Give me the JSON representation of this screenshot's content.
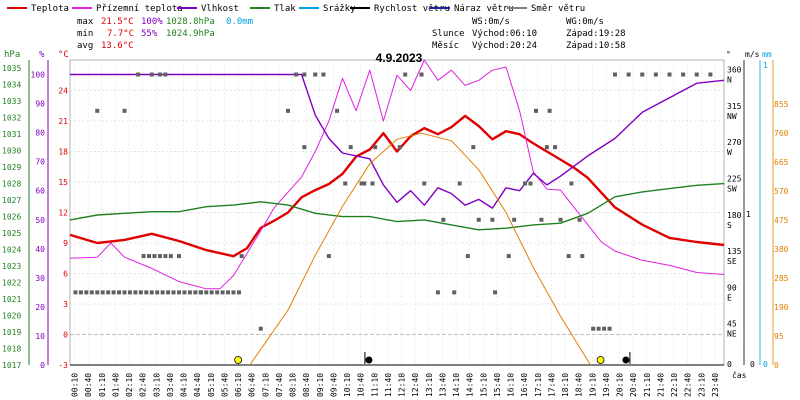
{
  "legend": [
    {
      "label": "Teplota",
      "color": "#e00000"
    },
    {
      "label": "Přízemní teplota",
      "color": "#e020e0"
    },
    {
      "label": "Vlhkost",
      "color": "#8000c0"
    },
    {
      "label": "Tlak",
      "color": "#208020"
    },
    {
      "label": "Srážky",
      "color": "#00a0e0"
    },
    {
      "label": "Rychlost větru",
      "color": "#000000"
    },
    {
      "label": "Náraz větru",
      "color": "#2020a0"
    },
    {
      "label": "Směr větru",
      "color": "#808080"
    }
  ],
  "stats": {
    "max_label": "max",
    "max_temp": "21.5°C",
    "max_hum": "100%",
    "max_press": "1028.8hPa",
    "max_rain": "0.0mm",
    "min_label": "min",
    "min_temp": "7.7°C",
    "min_hum": "55%",
    "min_press": "1024.9hPa",
    "avg_label": "avg",
    "avg_temp": "13.6°C"
  },
  "wind_info": {
    "ws": "WS:0m/s",
    "wg": "WG:0m/s"
  },
  "sun": {
    "label": "Slunce",
    "rise": "Východ:06:10",
    "set": "Západ:19:28"
  },
  "moon": {
    "label": "Měsíc",
    "rise": "Východ:20:24",
    "set": "Západ:10:58"
  },
  "colors": {
    "temp": "#e00000",
    "ground": "#e020e0",
    "hum": "#8000c0",
    "press": "#208020",
    "rain": "#00a0e0",
    "wind": "#000000",
    "gust": "#2020a0",
    "dir": "#606060",
    "sun": "#e08000",
    "grid": "#c0c0c0"
  },
  "chart_data": {
    "type": "line",
    "title": "4.9.2023",
    "x_label": "čas",
    "x_ticks": [
      "00:10",
      "00:40",
      "01:10",
      "01:40",
      "02:10",
      "02:40",
      "03:10",
      "03:40",
      "04:10",
      "04:40",
      "05:10",
      "05:40",
      "06:10",
      "06:40",
      "07:10",
      "07:40",
      "08:10",
      "08:40",
      "09:10",
      "09:40",
      "10:10",
      "10:40",
      "11:10",
      "11:40",
      "12:10",
      "12:40",
      "13:10",
      "13:40",
      "14:10",
      "14:40",
      "15:10",
      "15:40",
      "16:10",
      "16:40",
      "17:10",
      "17:40",
      "18:10",
      "18:40",
      "19:10",
      "19:40",
      "20:10",
      "20:40",
      "21:10",
      "21:40",
      "22:10",
      "22:40",
      "23:10",
      "23:40"
    ],
    "axes": {
      "hpa": {
        "unit": "hPa",
        "ticks": [
          1017,
          1018,
          1019,
          1020,
          1021,
          1022,
          1023,
          1024,
          1025,
          1026,
          1027,
          1028,
          1029,
          1030,
          1031,
          1032,
          1033,
          1034,
          1035
        ],
        "range": [
          1017,
          1035.5
        ]
      },
      "percent": {
        "unit": "%",
        "ticks": [
          0,
          10,
          20,
          30,
          40,
          50,
          60,
          70,
          80,
          90,
          100
        ],
        "range": [
          0,
          105
        ]
      },
      "temp": {
        "unit": "°C",
        "ticks": [
          -3,
          0,
          3,
          6,
          9,
          12,
          15,
          18,
          21,
          24
        ],
        "range": [
          -3,
          27
        ]
      },
      "dir": {
        "unit": "°",
        "ticks": [
          "0",
          "45",
          "90",
          "135",
          "180",
          "225",
          "270",
          "315",
          "360"
        ],
        "range": [
          0,
          378
        ]
      },
      "dir_names": [
        "",
        "NE",
        "E",
        "SE",
        "S",
        "SW",
        "W",
        "NW",
        "N"
      ],
      "wind": {
        "unit": "m/s",
        "ticks": [
          "0",
          "1"
        ],
        "range": [
          0,
          1
        ]
      },
      "rain": {
        "unit": "mm",
        "ticks": [
          "0",
          "1"
        ],
        "range": [
          0,
          1
        ]
      },
      "sun_scale": {
        "ticks": [
          0,
          95,
          190,
          285,
          380,
          475,
          570,
          665,
          760,
          855
        ],
        "range": [
          0,
          1000
        ]
      }
    },
    "series": [
      {
        "name": "Teplota",
        "color": "#e00000",
        "axis": "temp",
        "x": [
          0,
          1,
          2,
          3,
          4,
          5,
          6,
          6.5,
          7,
          7.5,
          8,
          8.5,
          9,
          9.5,
          10,
          10.5,
          11,
          11.5,
          12,
          12.5,
          13,
          13.5,
          14,
          14.5,
          15,
          15.5,
          16,
          16.5,
          17,
          17.5,
          18,
          18.5,
          19,
          20,
          21,
          22,
          23,
          24
        ],
        "y": [
          9.8,
          9.0,
          9.3,
          9.9,
          9.2,
          8.3,
          7.7,
          8.5,
          10.5,
          11.2,
          12,
          13.5,
          14.2,
          14.8,
          15.8,
          17.5,
          18.2,
          19.8,
          18,
          19.5,
          20.3,
          19.7,
          20.4,
          21.5,
          20.5,
          19.2,
          20.0,
          19.7,
          18.8,
          18.0,
          17.2,
          16.4,
          15.4,
          12.5,
          10.8,
          9.5,
          9.1,
          8.8
        ]
      },
      {
        "name": "Přízemní teplota",
        "color": "#e020e0",
        "axis": "temp",
        "x": [
          0,
          1,
          1.5,
          2,
          3,
          4,
          5,
          5.5,
          6,
          6.5,
          7,
          7.5,
          8,
          8.5,
          9,
          9.5,
          10,
          10.5,
          11,
          11.5,
          12,
          12.5,
          13,
          13.5,
          14,
          14.5,
          15,
          15.5,
          16,
          16.5,
          17,
          17.5,
          18,
          18.5,
          19,
          19.5,
          20,
          21,
          22,
          23,
          24
        ],
        "y": [
          7.5,
          7.6,
          9.0,
          7.6,
          6.5,
          5.2,
          4.5,
          4.5,
          5.8,
          8.0,
          10.2,
          12.5,
          14,
          15.5,
          18,
          21,
          25.2,
          22,
          26,
          21,
          25.5,
          24,
          27,
          25,
          26,
          24.5,
          25,
          26,
          26.3,
          22,
          16,
          14.3,
          14.2,
          12.5,
          10.8,
          9.1,
          8.2,
          7.3,
          6.8,
          6.1,
          5.9
        ]
      },
      {
        "name": "Vlhkost",
        "color": "#8000c0",
        "axis": "percent",
        "x": [
          0,
          3,
          6,
          8.5,
          9,
          9.5,
          10,
          11,
          11.5,
          12,
          12.5,
          13,
          13.5,
          14,
          14.5,
          15,
          15.5,
          16,
          16.5,
          17,
          17.5,
          18,
          19,
          20,
          21,
          22,
          23,
          24
        ],
        "y": [
          100,
          100,
          100,
          100,
          86,
          78,
          73,
          71,
          62,
          56,
          60,
          55,
          61,
          59,
          55,
          57,
          54,
          61,
          60,
          66,
          62,
          65,
          72,
          78,
          87,
          92,
          97,
          98
        ]
      },
      {
        "name": "Tlak",
        "color": "#208020",
        "axis": "hpa",
        "x": [
          0,
          1,
          2,
          3,
          4,
          5,
          6,
          7,
          8,
          9,
          10,
          11,
          12,
          13,
          14,
          15,
          16,
          17,
          18,
          19,
          20,
          21,
          22,
          23,
          24
        ],
        "y": [
          1025.8,
          1026.1,
          1026.2,
          1026.3,
          1026.3,
          1026.6,
          1026.7,
          1026.9,
          1026.7,
          1026.2,
          1026.0,
          1026.0,
          1025.7,
          1025.8,
          1025.5,
          1025.2,
          1025.3,
          1025.5,
          1025.6,
          1026.2,
          1027.2,
          1027.5,
          1027.7,
          1027.9,
          1028.0
        ]
      },
      {
        "name": "Slunce",
        "color": "#e08000",
        "axis": "sun_scale",
        "x": [
          6.6,
          8,
          9,
          10,
          11,
          12,
          12.9,
          14,
          15,
          16,
          17,
          18,
          19.1
        ],
        "y": [
          0,
          180,
          360,
          520,
          660,
          740,
          760,
          735,
          640,
          500,
          320,
          160,
          0
        ]
      },
      {
        "name": "Směr větru",
        "color": "#606060",
        "axis": "dir",
        "type": "scatter",
        "x": [
          0.2,
          0.4,
          0.6,
          0.8,
          1,
          1.2,
          1.4,
          1.6,
          1.8,
          2,
          2.2,
          2.4,
          2.6,
          2.8,
          3,
          3.2,
          3.4,
          3.6,
          3.8,
          4,
          4.2,
          4.4,
          4.6,
          4.8,
          5,
          5.2,
          5.4,
          5.6,
          5.8,
          6,
          6.2,
          1,
          2.7,
          2.9,
          3.1,
          3.3,
          3.5,
          3.7,
          4,
          7,
          8.3,
          8.6,
          9,
          9.3,
          9.8,
          10.3,
          10.8,
          11.1,
          12.1,
          13,
          13.5,
          14.3,
          14.8,
          15.5,
          16.3,
          16.7,
          17.1,
          17.5,
          18,
          18.3,
          18.8,
          19.2,
          19.4,
          19.6,
          19.8,
          20,
          20.5,
          21,
          21.5,
          22,
          22.5,
          23,
          23.5,
          2,
          2.5,
          3,
          3.3,
          3.5,
          4.8,
          6.3,
          8,
          8.6,
          9.5,
          10.1,
          10.7,
          11.2,
          12.3,
          12.9,
          13.7,
          14.1,
          14.6,
          15.0,
          15.6,
          16.1,
          16.9,
          17.3,
          17.8,
          17.6,
          18.4,
          18.7
        ],
        "y": [
          90,
          90,
          90,
          90,
          90,
          90,
          90,
          90,
          90,
          90,
          90,
          90,
          90,
          90,
          90,
          90,
          90,
          90,
          90,
          90,
          90,
          90,
          90,
          90,
          90,
          90,
          90,
          90,
          90,
          90,
          90,
          315,
          135,
          135,
          135,
          135,
          135,
          135,
          135,
          45,
          360,
          360,
          360,
          360,
          315,
          270,
          225,
          225,
          270,
          225,
          90,
          225,
          270,
          180,
          180,
          225,
          315,
          270,
          180,
          135,
          135,
          45,
          45,
          45,
          45,
          360,
          360,
          360,
          360,
          360,
          360,
          360,
          360,
          315,
          360,
          360,
          360,
          360,
          90,
          135,
          315,
          270,
          135,
          225,
          225,
          270,
          360,
          360,
          180,
          90,
          135,
          180,
          90,
          135,
          225,
          180,
          270,
          315,
          225,
          180
        ]
      }
    ],
    "markers": [
      {
        "kind": "sunrise",
        "time": "06:10",
        "x": 6.17
      },
      {
        "kind": "moonset",
        "time": "10:58",
        "x": 10.97
      },
      {
        "kind": "sunset",
        "time": "19:28",
        "x": 19.47
      },
      {
        "kind": "moonrise",
        "time": "20:24",
        "x": 20.4
      }
    ]
  }
}
